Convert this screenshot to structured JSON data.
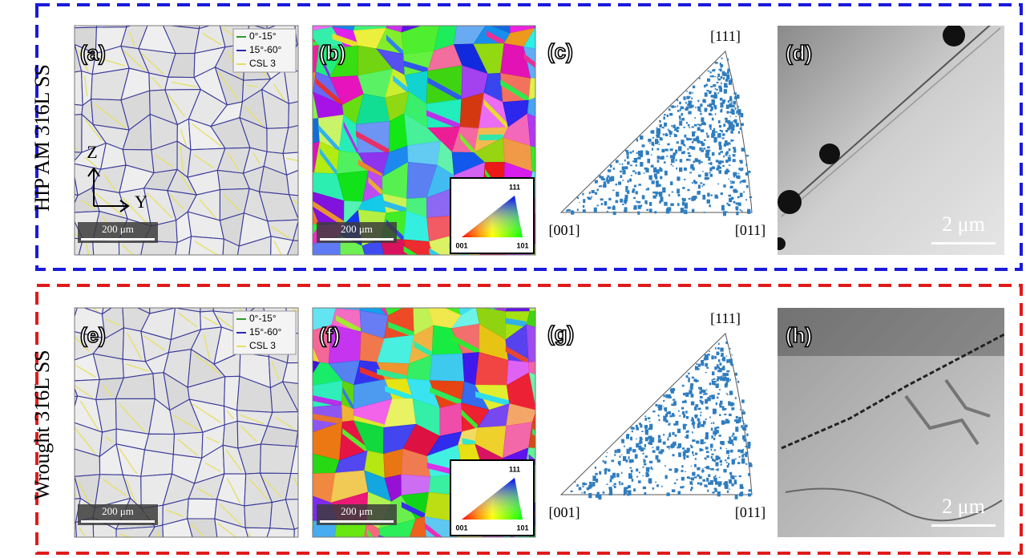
{
  "rows": [
    {
      "label": "HIP AM 316L SS",
      "panels": [
        {
          "label": "(a)",
          "legend": [
            "0°-15°",
            "15°-60°",
            "CSL 3"
          ],
          "scale_bar": "200 μm",
          "axes": [
            "Z",
            "Y"
          ]
        },
        {
          "label": "(b)",
          "scale_bar": "200 μm",
          "key": [
            "111",
            "001",
            "101"
          ]
        },
        {
          "label": "(c)",
          "poles": [
            "[111]",
            "[001]",
            "[011]"
          ]
        },
        {
          "label": "(d)",
          "scale_bar": "2 μm"
        }
      ]
    },
    {
      "label": "Wrought 316L SS",
      "panels": [
        {
          "label": "(e)",
          "legend": [
            "0°-15°",
            "15°-60°",
            "CSL 3"
          ],
          "scale_bar": "200 μm"
        },
        {
          "label": "(f)",
          "scale_bar": "200 μm",
          "key": [
            "111",
            "001",
            "101"
          ]
        },
        {
          "label": "(g)",
          "poles": [
            "[111]",
            "[001]",
            "[011]"
          ]
        },
        {
          "label": "(h)",
          "scale_bar": "2 μm"
        }
      ]
    }
  ]
}
